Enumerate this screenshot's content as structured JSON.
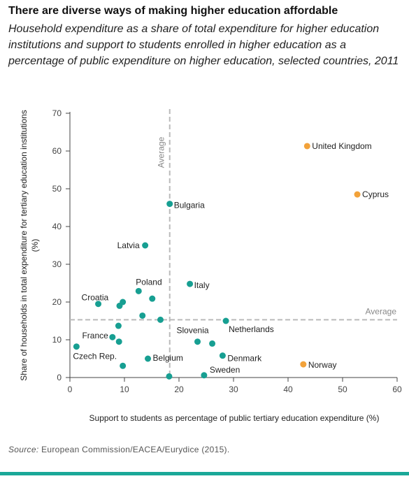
{
  "title": "There are diverse ways of making higher education affordable",
  "subtitle": "Household expenditure as a share of total expenditure for higher education institutions and support to students enrolled in higher education as a percentage of public expenditure on higher education, selected countries, 2011",
  "source_label": "Source:",
  "source_text": " European Commission/EACEA/Eurydice (2015).",
  "colors": {
    "teal": "#179f92",
    "orange": "#f2a23a",
    "grid_dash": "#bbbbbb",
    "bottom_rule": "#1aa898"
  },
  "chart_data": {
    "type": "scatter",
    "xlabel": "Support to students as percentage of public tertiary education expenditure (%)",
    "ylabel": "Share of households in total expenditure for tertiary education institutions (%)",
    "xlim": [
      0,
      60
    ],
    "ylim": [
      0,
      70
    ],
    "xticks": [
      0,
      10,
      20,
      30,
      40,
      50,
      60
    ],
    "yticks": [
      0,
      10,
      20,
      30,
      40,
      50,
      60,
      70
    ],
    "average_x": 18.3,
    "average_y": 15.3,
    "average_label": "Average",
    "points": [
      {
        "label": "United Kingdom",
        "x": 43.5,
        "y": 61.3,
        "highlight": true
      },
      {
        "label": "Cyprus",
        "x": 52.7,
        "y": 48.5,
        "highlight": true
      },
      {
        "label": "Norway",
        "x": 42.8,
        "y": 3.5,
        "highlight": true
      },
      {
        "label": "Bulgaria",
        "x": 18.3,
        "y": 46.0
      },
      {
        "label": "Latvia",
        "x": 13.8,
        "y": 35.0
      },
      {
        "label": "Italy",
        "x": 22.0,
        "y": 24.8
      },
      {
        "label": "Poland",
        "x": 12.6,
        "y": 22.9
      },
      {
        "label": "Croatia",
        "x": 5.2,
        "y": 19.5
      },
      {
        "label": "Netherlands",
        "x": 28.6,
        "y": 15.0
      },
      {
        "label": "Slovenia",
        "x": 23.4,
        "y": 9.5
      },
      {
        "label": "France",
        "x": 7.8,
        "y": 10.7
      },
      {
        "label": "Czech Rep.",
        "x": 1.2,
        "y": 8.2
      },
      {
        "label": "Belgium",
        "x": 14.3,
        "y": 5.0
      },
      {
        "label": "Denmark",
        "x": 28.0,
        "y": 5.8
      },
      {
        "label": "Sweden",
        "x": 24.6,
        "y": 0.6
      },
      {
        "label": "",
        "x": 9.7,
        "y": 20.0
      },
      {
        "label": "",
        "x": 9.1,
        "y": 19.0
      },
      {
        "label": "",
        "x": 15.1,
        "y": 20.9
      },
      {
        "label": "",
        "x": 13.3,
        "y": 16.4
      },
      {
        "label": "",
        "x": 16.6,
        "y": 15.3
      },
      {
        "label": "",
        "x": 8.9,
        "y": 13.7
      },
      {
        "label": "",
        "x": 9.0,
        "y": 9.5
      },
      {
        "label": "",
        "x": 26.1,
        "y": 9.0
      },
      {
        "label": "",
        "x": 9.7,
        "y": 3.1
      },
      {
        "label": "",
        "x": 18.2,
        "y": 0.3
      }
    ]
  }
}
